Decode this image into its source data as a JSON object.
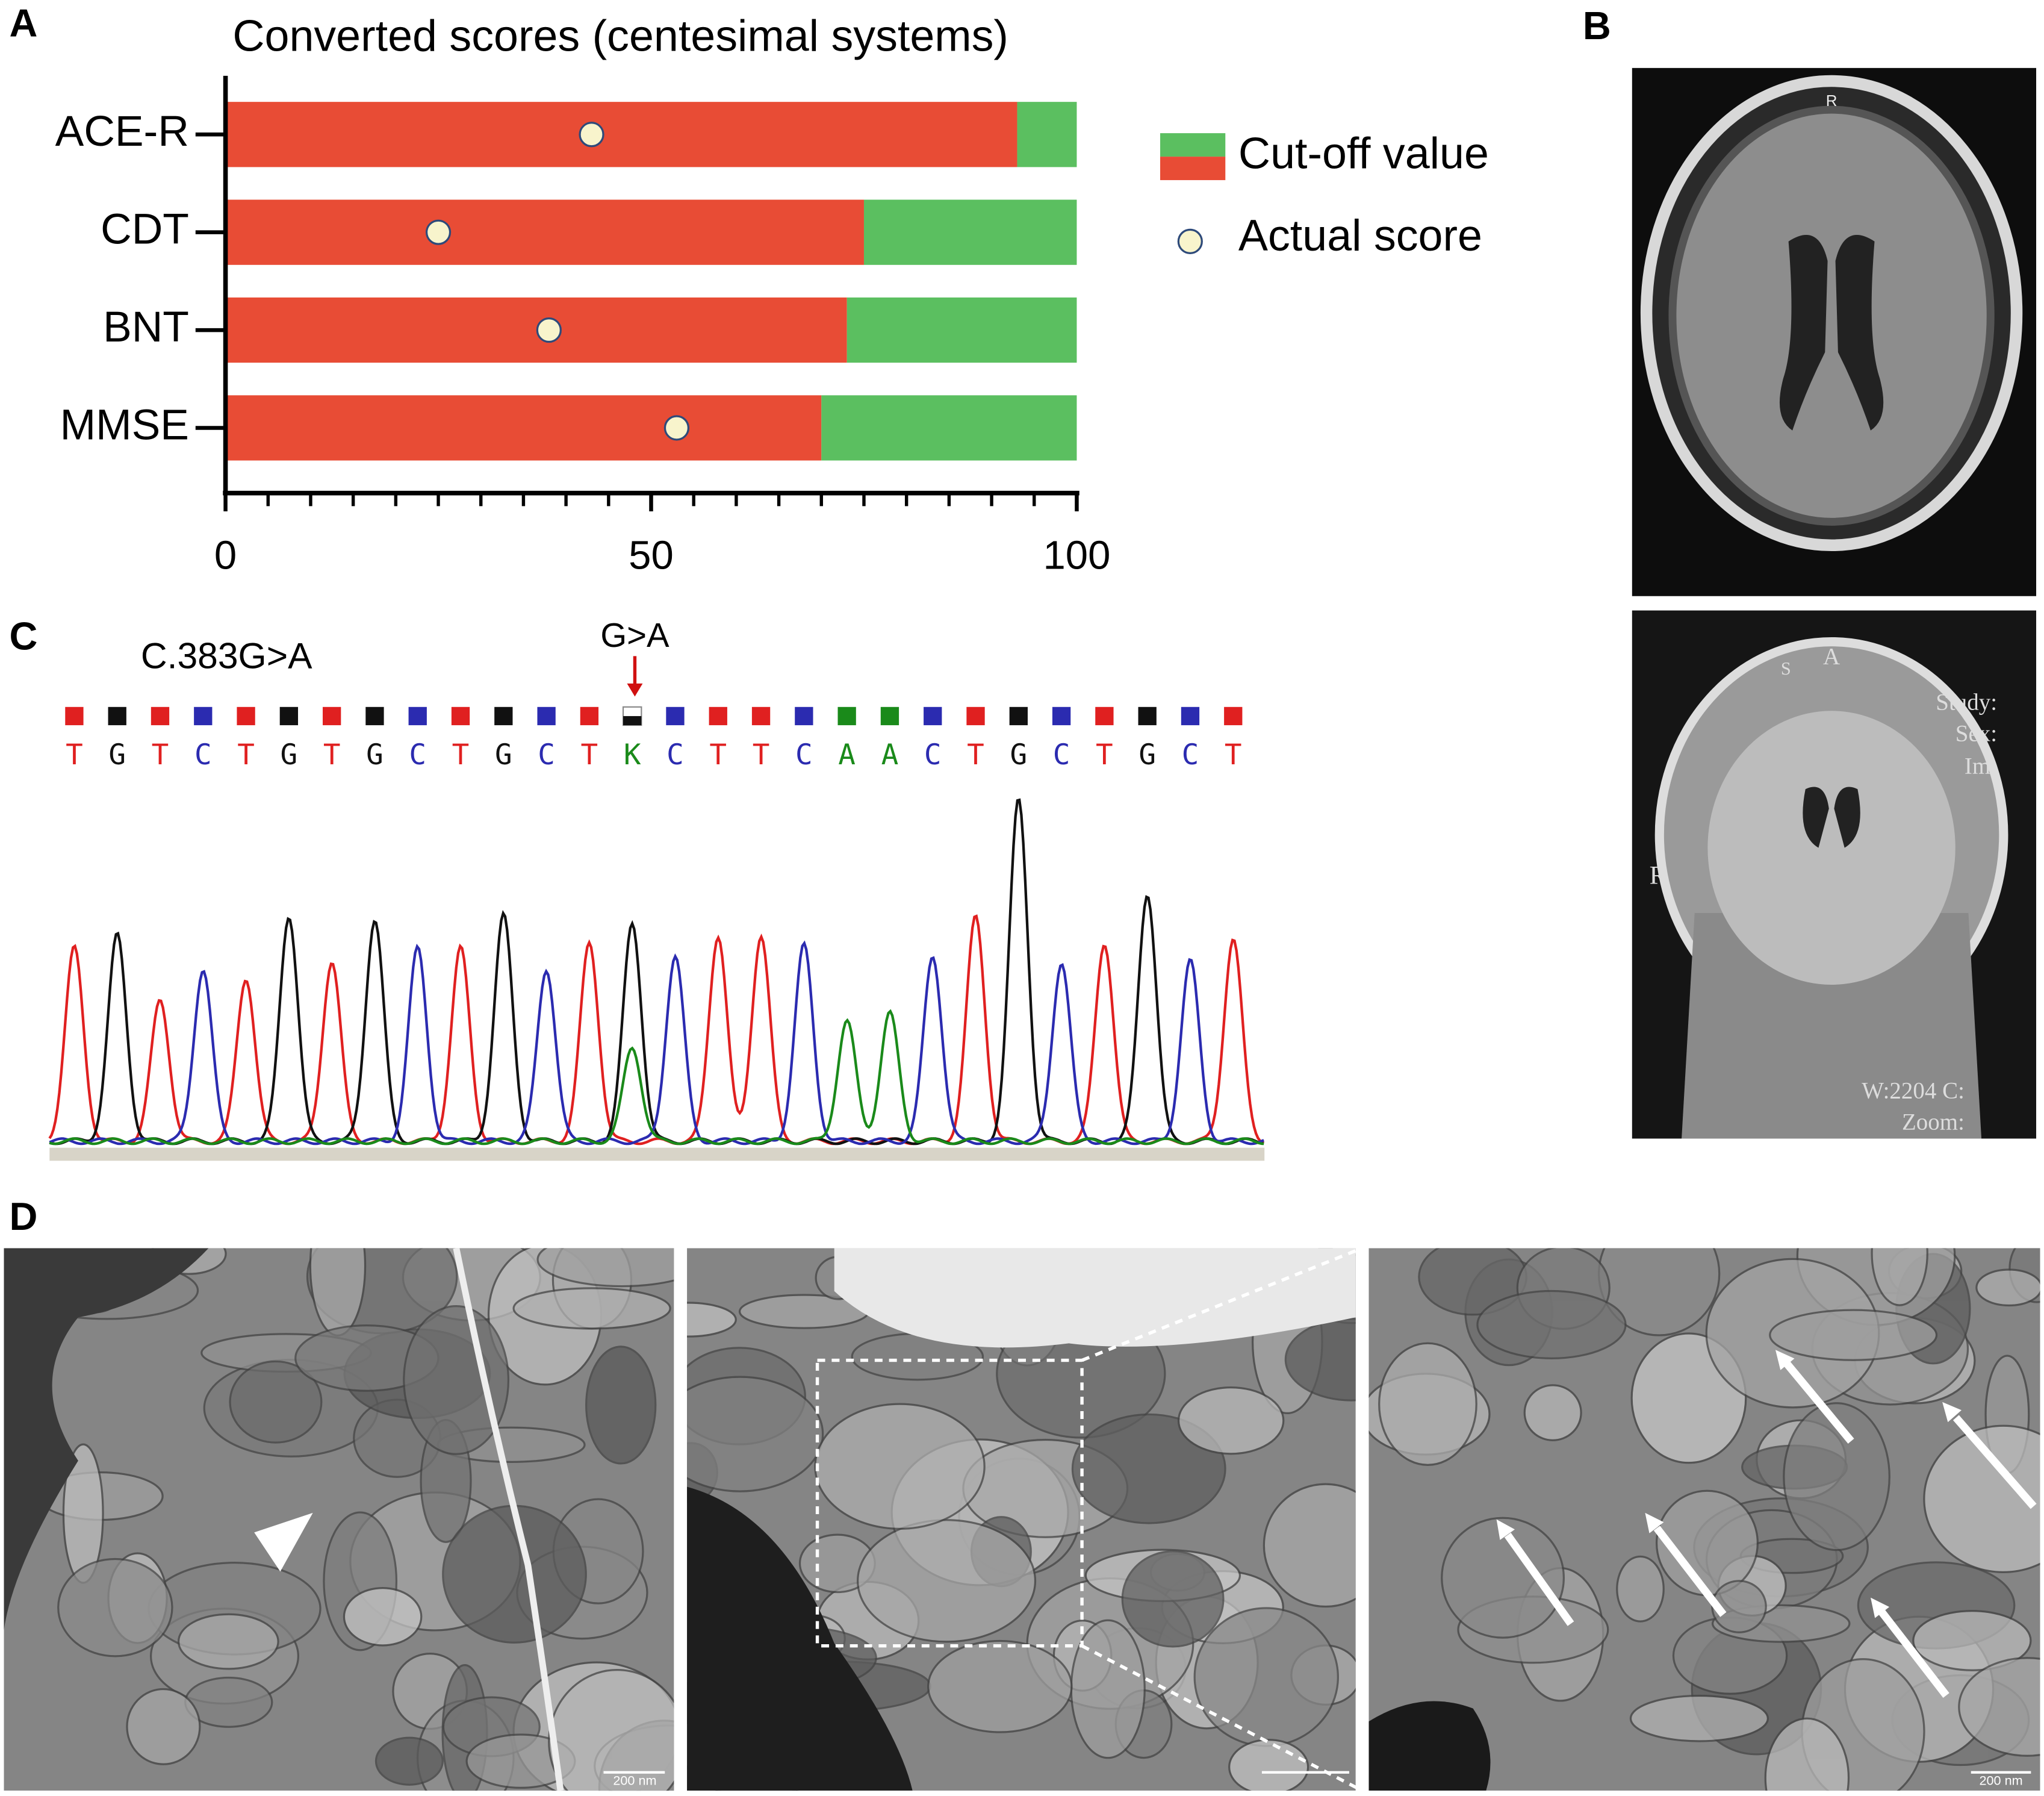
{
  "chart_data": {
    "type": "bar",
    "orientation": "horizontal",
    "title": "Converted scores (centesimal systems)",
    "categories": [
      "ACE-R",
      "CDT",
      "BNT",
      "MMSE"
    ],
    "series": [
      {
        "name": "Cut-off value",
        "color": "#e84c35",
        "values": [
          93,
          75,
          73,
          70
        ]
      },
      {
        "color": "#5bbf60",
        "values": [
          7,
          25,
          27,
          30
        ]
      }
    ],
    "points": {
      "type": "scatter",
      "name": "Actual score",
      "color": "#f8f4cc",
      "edge": "#2e4a7a",
      "values": [
        43,
        25,
        38,
        53
      ]
    },
    "xlim": [
      0,
      100
    ],
    "xticks": [
      0,
      50,
      100
    ],
    "xminorticks": [
      5,
      10,
      15,
      20,
      25,
      30,
      35,
      40,
      45,
      55,
      60,
      65,
      70,
      75,
      80,
      85,
      90,
      95
    ],
    "legend": "right"
  },
  "panel_labels": [
    "A",
    "B",
    "C",
    "D"
  ],
  "mri": {
    "axial_labels": [
      "R"
    ],
    "coronal_labels": [
      "S",
      "A",
      "Study:",
      "Sex:",
      "Im:",
      "R",
      "W:2204 C:",
      "Zoom:"
    ]
  },
  "sequence": {
    "variant": "C.383G>A",
    "marker": "G>A",
    "bases": [
      "T",
      "G",
      "T",
      "C",
      "T",
      "G",
      "T",
      "G",
      "C",
      "T",
      "G",
      "C",
      "T",
      "K",
      "C",
      "T",
      "T",
      "C",
      "A",
      "A",
      "C",
      "T",
      "G",
      "C",
      "T",
      "G",
      "C",
      "T"
    ]
  },
  "em": {
    "scale_bars": [
      "200 nm",
      "200 nm"
    ]
  }
}
